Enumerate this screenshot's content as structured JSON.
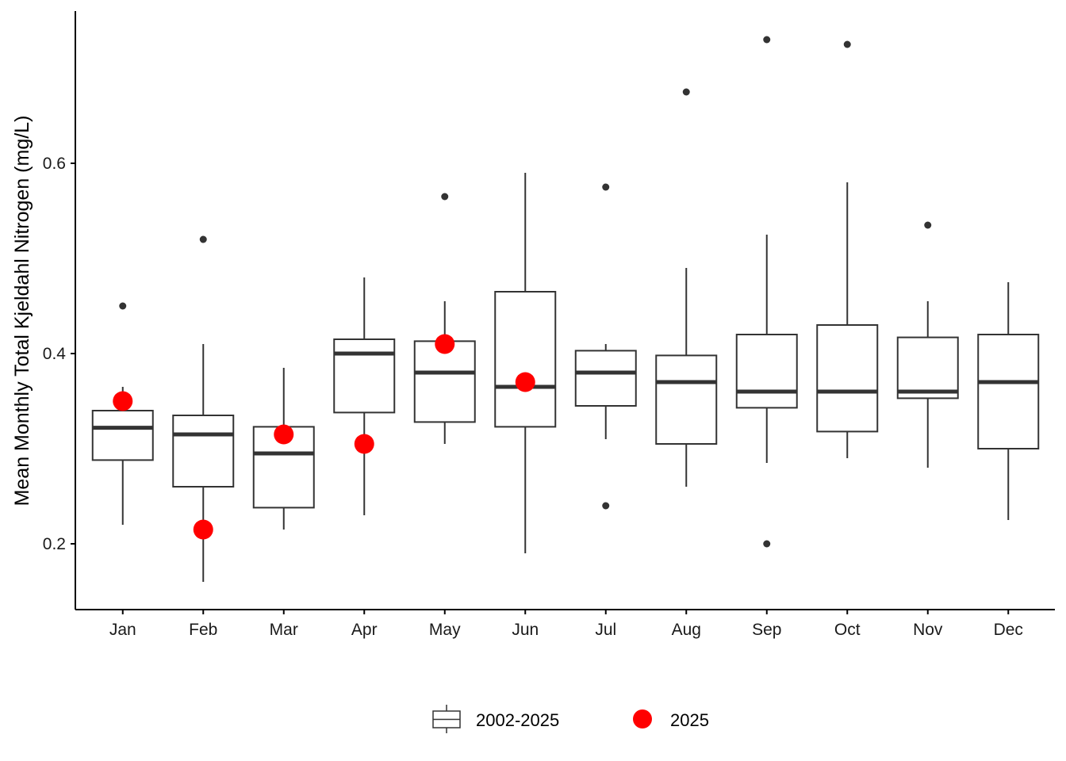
{
  "chart_data": {
    "type": "box",
    "ylabel": "Mean Monthly Total Kjeldahl Nitrogen (mg/L)",
    "xlabel": "",
    "categories": [
      "Jan",
      "Feb",
      "Mar",
      "Apr",
      "May",
      "Jun",
      "Jul",
      "Aug",
      "Sep",
      "Oct",
      "Nov",
      "Dec"
    ],
    "yticks": [
      0.2,
      0.4,
      0.6
    ],
    "ytick_labels": [
      "0.2",
      "0.4",
      "0.6"
    ],
    "ylim": [
      0.135,
      0.76
    ],
    "grid": false,
    "legend_position": "bottom",
    "series": [
      {
        "name": "2002-2025",
        "kind": "boxplot",
        "color": "#333333",
        "boxes": [
          {
            "whisker_low": 0.22,
            "q1": 0.288,
            "median": 0.322,
            "q3": 0.34,
            "whisker_high": 0.365,
            "outliers": [
              0.45
            ]
          },
          {
            "whisker_low": 0.16,
            "q1": 0.26,
            "median": 0.315,
            "q3": 0.335,
            "whisker_high": 0.41,
            "outliers": [
              0.52
            ]
          },
          {
            "whisker_low": 0.215,
            "q1": 0.238,
            "median": 0.295,
            "q3": 0.323,
            "whisker_high": 0.385,
            "outliers": []
          },
          {
            "whisker_low": 0.23,
            "q1": 0.338,
            "median": 0.4,
            "q3": 0.415,
            "whisker_high": 0.48,
            "outliers": []
          },
          {
            "whisker_low": 0.305,
            "q1": 0.328,
            "median": 0.38,
            "q3": 0.413,
            "whisker_high": 0.455,
            "outliers": [
              0.565
            ]
          },
          {
            "whisker_low": 0.19,
            "q1": 0.323,
            "median": 0.365,
            "q3": 0.465,
            "whisker_high": 0.59,
            "outliers": []
          },
          {
            "whisker_low": 0.31,
            "q1": 0.345,
            "median": 0.38,
            "q3": 0.403,
            "whisker_high": 0.41,
            "outliers": [
              0.24,
              0.575
            ]
          },
          {
            "whisker_low": 0.26,
            "q1": 0.305,
            "median": 0.37,
            "q3": 0.398,
            "whisker_high": 0.49,
            "outliers": [
              0.675
            ]
          },
          {
            "whisker_low": 0.285,
            "q1": 0.343,
            "median": 0.36,
            "q3": 0.42,
            "whisker_high": 0.525,
            "outliers": [
              0.2,
              0.73
            ]
          },
          {
            "whisker_low": 0.29,
            "q1": 0.318,
            "median": 0.36,
            "q3": 0.43,
            "whisker_high": 0.58,
            "outliers": [
              0.725
            ]
          },
          {
            "whisker_low": 0.28,
            "q1": 0.353,
            "median": 0.36,
            "q3": 0.417,
            "whisker_high": 0.455,
            "outliers": [
              0.535
            ]
          },
          {
            "whisker_low": 0.225,
            "q1": 0.3,
            "median": 0.37,
            "q3": 0.42,
            "whisker_high": 0.475,
            "outliers": []
          }
        ]
      },
      {
        "name": "2025",
        "kind": "point",
        "color": "#ff0000",
        "values": [
          0.35,
          0.215,
          0.315,
          0.305,
          0.41,
          0.37,
          null,
          null,
          null,
          null,
          null,
          null
        ]
      }
    ]
  }
}
